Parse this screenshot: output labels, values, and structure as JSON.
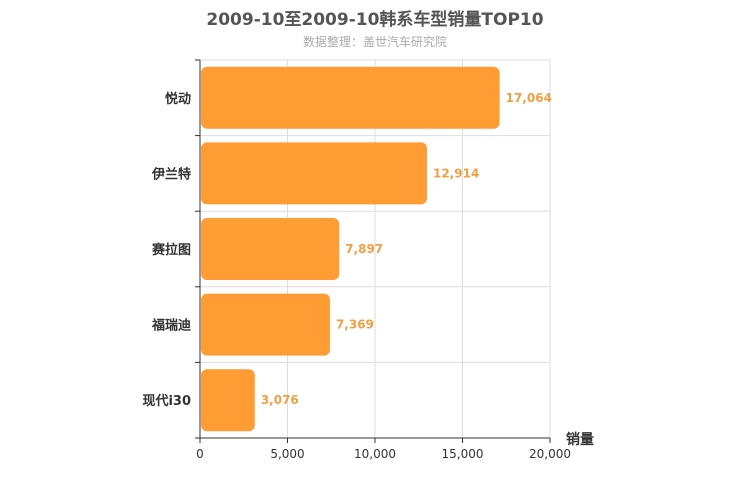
{
  "chart_data": {
    "type": "bar",
    "orientation": "horizontal",
    "title": "2009-10至2009-10韩系车型销量TOP10",
    "subtitle": "数据整理：盖世汽车研究院",
    "categories": [
      "悦动",
      "伊兰特",
      "赛拉图",
      "福瑞迪",
      "现代i30"
    ],
    "values": [
      17064,
      12914,
      7897,
      7369,
      3076
    ],
    "value_labels": [
      "17,064",
      "12,914",
      "7,897",
      "7,369",
      "3,076"
    ],
    "xlabel": "销量",
    "ylabel": "",
    "xlim": [
      0,
      20000
    ],
    "xticks": [
      0,
      5000,
      10000,
      15000,
      20000
    ],
    "xtick_labels": [
      "0",
      "5,000",
      "10,000",
      "15,000",
      "20,000"
    ],
    "grid": true,
    "colors": {
      "bar": "#ff9c34",
      "value_label": "#f0a040",
      "grid": "#dddddd",
      "axis": "#333333"
    }
  }
}
